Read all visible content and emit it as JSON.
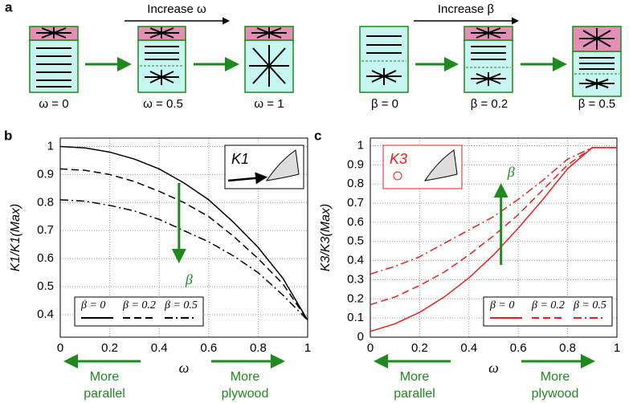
{
  "panel_a": {
    "panel_label": "a",
    "increase_omega": "Increase ω",
    "increase_beta": "Increase β",
    "omega_labels": [
      "ω = 0",
      "ω = 0.5",
      "ω = 1"
    ],
    "beta_labels": [
      "β = 0",
      "β = 0.2",
      "β = 0.5"
    ]
  },
  "chart_data": [
    {
      "type": "line",
      "panel_label": "b",
      "x_label": "ω",
      "y_label": "K1/K1(Max)",
      "x": [
        0,
        0.1,
        0.2,
        0.3,
        0.4,
        0.5,
        0.6,
        0.7,
        0.8,
        0.9,
        1
      ],
      "series": [
        {
          "name": "β = 0",
          "color": "#000000",
          "dash": "solid",
          "values": [
            1.0,
            0.995,
            0.98,
            0.955,
            0.92,
            0.87,
            0.81,
            0.73,
            0.64,
            0.53,
            0.38
          ]
        },
        {
          "name": "β = 0.2",
          "color": "#000000",
          "dash": "dashed",
          "values": [
            0.92,
            0.915,
            0.9,
            0.875,
            0.84,
            0.8,
            0.75,
            0.68,
            0.6,
            0.51,
            0.38
          ]
        },
        {
          "name": "β = 0.5",
          "color": "#000000",
          "dash": "dashdot",
          "values": [
            0.81,
            0.805,
            0.79,
            0.77,
            0.74,
            0.7,
            0.66,
            0.61,
            0.55,
            0.47,
            0.38
          ]
        }
      ],
      "xlim": [
        0,
        1
      ],
      "xticks": [
        0,
        0.2,
        0.4,
        0.6,
        0.8,
        1
      ],
      "ylim": [
        0.32,
        1.03
      ],
      "yticks": [
        0.4,
        0.5,
        0.6,
        0.7,
        0.8,
        0.9,
        1
      ],
      "grid": true,
      "legend": "lower left",
      "inset_label": "K1",
      "arrow_label": "β",
      "arrow_direction": "down",
      "left_note": [
        "More",
        "parallel"
      ],
      "right_note": [
        "More",
        "plywood"
      ]
    },
    {
      "type": "line",
      "panel_label": "c",
      "x_label": "ω",
      "y_label": "K3/K3(Max)",
      "x": [
        0,
        0.1,
        0.2,
        0.3,
        0.4,
        0.5,
        0.6,
        0.7,
        0.8,
        0.9,
        1
      ],
      "series": [
        {
          "name": "β = 0",
          "color": "#e8201c",
          "dash": "solid",
          "values": [
            0.03,
            0.07,
            0.13,
            0.21,
            0.31,
            0.43,
            0.57,
            0.72,
            0.88,
            0.99,
            0.99
          ]
        },
        {
          "name": "β = 0.2",
          "color": "#e8201c",
          "dash": "dashed",
          "values": [
            0.17,
            0.21,
            0.27,
            0.34,
            0.43,
            0.53,
            0.64,
            0.77,
            0.9,
            0.99,
            0.99
          ]
        },
        {
          "name": "β = 0.5",
          "color": "#e8201c",
          "dash": "dashdot",
          "values": [
            0.33,
            0.37,
            0.42,
            0.49,
            0.56,
            0.63,
            0.72,
            0.82,
            0.93,
            0.99,
            0.99
          ]
        }
      ],
      "xlim": [
        0,
        1
      ],
      "xticks": [
        0,
        0.2,
        0.4,
        0.6,
        0.8,
        1
      ],
      "ylim": [
        0,
        1.04
      ],
      "yticks": [
        0,
        0.1,
        0.2,
        0.3,
        0.4,
        0.5,
        0.6,
        0.7,
        0.8,
        0.9,
        1
      ],
      "grid": true,
      "legend": "lower right",
      "inset_label": "K3",
      "arrow_label": "β",
      "arrow_direction": "up",
      "left_note": [
        "More",
        "parallel"
      ],
      "right_note": [
        "More",
        "plywood"
      ]
    }
  ]
}
